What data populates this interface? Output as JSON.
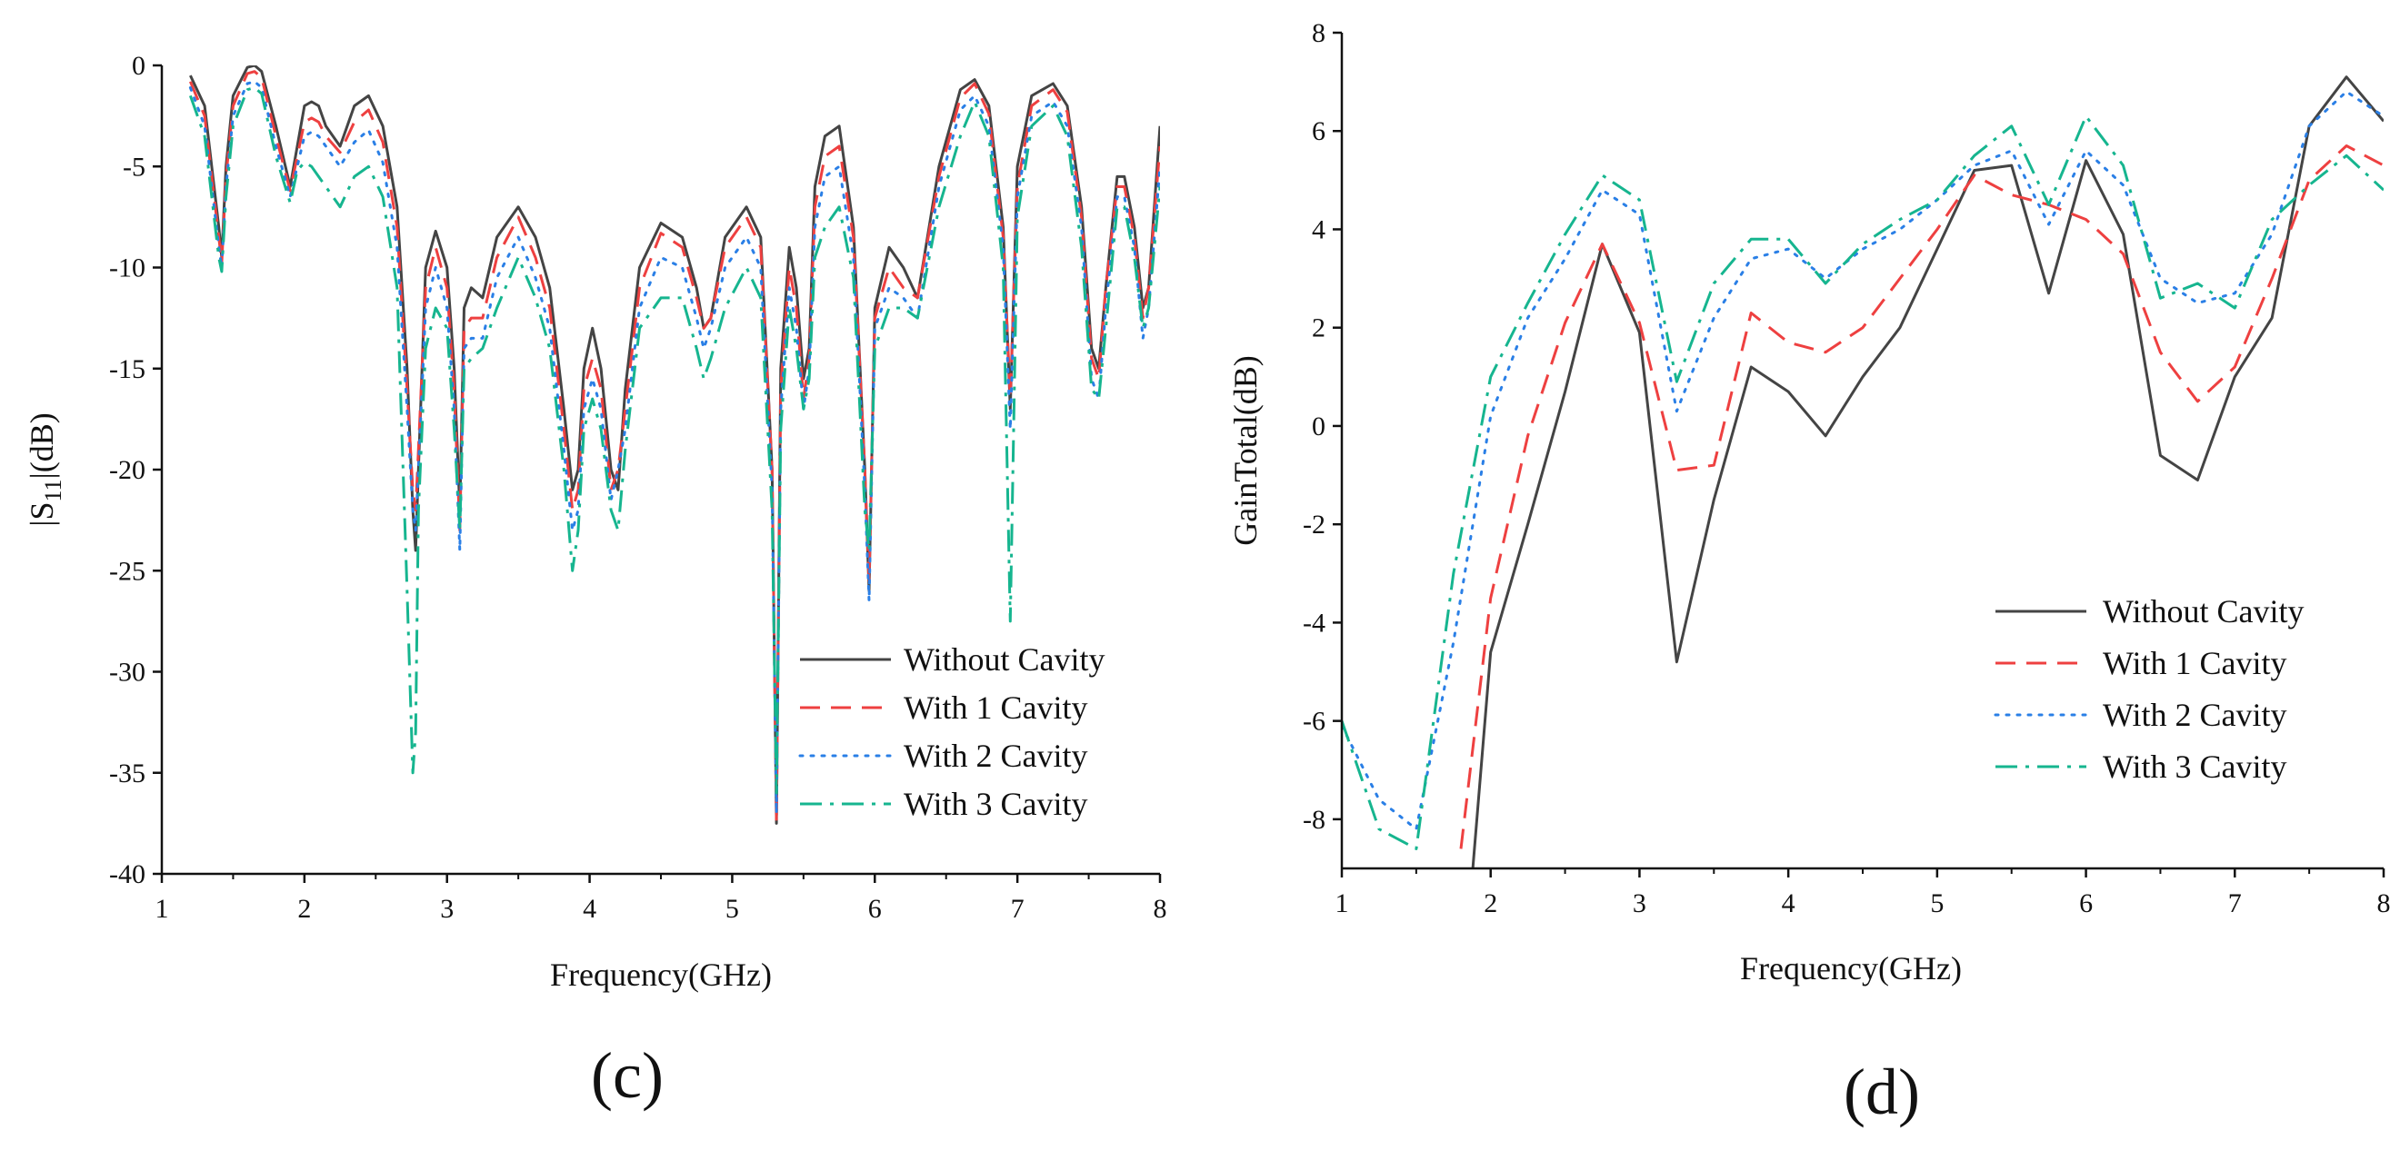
{
  "chart_data": [
    {
      "type": "line",
      "panel_label": "(c)",
      "title": "",
      "xlabel": "Frequency(GHz)",
      "ylabel_main": "|S",
      "ylabel_sub": "11",
      "ylabel_rest": "|(dB)",
      "xlim": [
        1,
        8
      ],
      "ylim": [
        -40,
        0
      ],
      "xticks": [
        "1",
        "2",
        "3",
        "4",
        "5",
        "6",
        "7",
        "8"
      ],
      "yticks": [
        "0",
        "-5",
        "-10",
        "-15",
        "-20",
        "-25",
        "-30",
        "-35",
        "-40"
      ],
      "grid": false,
      "legend_position": "bottom-right",
      "series": [
        {
          "name": "Without Cavity",
          "color": "#444444",
          "dash": "solid",
          "x": [
            1.2,
            1.3,
            1.4,
            1.42,
            1.45,
            1.5,
            1.6,
            1.65,
            1.7,
            1.8,
            1.9,
            1.95,
            2.0,
            2.05,
            2.1,
            2.15,
            2.25,
            2.35,
            2.45,
            2.55,
            2.65,
            2.72,
            2.76,
            2.78,
            2.8,
            2.85,
            2.92,
            3.0,
            3.05,
            3.09,
            3.12,
            3.17,
            3.25,
            3.35,
            3.5,
            3.62,
            3.72,
            3.82,
            3.88,
            3.92,
            3.96,
            4.02,
            4.08,
            4.15,
            4.2,
            4.25,
            4.35,
            4.5,
            4.65,
            4.75,
            4.8,
            4.85,
            4.95,
            5.1,
            5.2,
            5.28,
            5.31,
            5.34,
            5.4,
            5.45,
            5.5,
            5.54,
            5.58,
            5.65,
            5.75,
            5.85,
            5.93,
            5.96,
            6.0,
            6.1,
            6.2,
            6.3,
            6.45,
            6.6,
            6.7,
            6.8,
            6.9,
            6.95,
            7.0,
            7.1,
            7.25,
            7.35,
            7.45,
            7.52,
            7.57,
            7.62,
            7.7,
            7.75,
            7.82,
            7.88,
            7.92,
            8.0
          ],
          "y": [
            -0.5,
            -2,
            -8,
            -9.5,
            -5,
            -1.5,
            -0.1,
            0,
            -0.3,
            -3,
            -6,
            -4,
            -2,
            -1.8,
            -2,
            -3,
            -4,
            -2,
            -1.5,
            -3,
            -7,
            -15,
            -22,
            -24,
            -20,
            -10,
            -8.2,
            -10,
            -15,
            -22,
            -12,
            -11,
            -11.5,
            -8.5,
            -7,
            -8.5,
            -11,
            -17,
            -21,
            -20,
            -15,
            -13,
            -15,
            -20,
            -21,
            -16,
            -10,
            -7.8,
            -8.5,
            -11,
            -13,
            -12.5,
            -8.5,
            -7,
            -8.5,
            -20,
            -37.5,
            -15,
            -9,
            -11,
            -15.5,
            -14,
            -6,
            -3.5,
            -3,
            -8,
            -20,
            -26,
            -12,
            -9,
            -10,
            -11.5,
            -5,
            -1.2,
            -0.7,
            -2,
            -8,
            -17,
            -5,
            -1.5,
            -0.9,
            -2,
            -7,
            -14,
            -15,
            -11,
            -5.5,
            -5.5,
            -8,
            -12,
            -11,
            -3
          ]
        },
        {
          "name": "With 1 Cavity",
          "color": "#ee4040",
          "dash": "dash",
          "x": [
            1.2,
            1.3,
            1.4,
            1.42,
            1.45,
            1.5,
            1.6,
            1.65,
            1.7,
            1.8,
            1.9,
            1.95,
            2.0,
            2.05,
            2.1,
            2.15,
            2.25,
            2.35,
            2.45,
            2.55,
            2.65,
            2.72,
            2.76,
            2.78,
            2.8,
            2.85,
            2.92,
            3.0,
            3.05,
            3.09,
            3.12,
            3.17,
            3.25,
            3.35,
            3.5,
            3.62,
            3.72,
            3.82,
            3.88,
            3.92,
            3.96,
            4.02,
            4.08,
            4.15,
            4.2,
            4.25,
            4.35,
            4.5,
            4.65,
            4.75,
            4.8,
            4.85,
            4.95,
            5.1,
            5.2,
            5.28,
            5.31,
            5.34,
            5.4,
            5.45,
            5.5,
            5.54,
            5.58,
            5.65,
            5.75,
            5.85,
            5.93,
            5.96,
            6.0,
            6.1,
            6.2,
            6.3,
            6.45,
            6.6,
            6.7,
            6.8,
            6.9,
            6.95,
            7.0,
            7.1,
            7.25,
            7.35,
            7.45,
            7.52,
            7.57,
            7.62,
            7.7,
            7.75,
            7.82,
            7.88,
            7.92,
            8.0
          ],
          "y": [
            -0.8,
            -2.5,
            -8.5,
            -9.8,
            -5.5,
            -2,
            -0.4,
            -0.3,
            -0.6,
            -3.5,
            -6.2,
            -4.5,
            -2.8,
            -2.6,
            -2.8,
            -3.5,
            -4.3,
            -2.8,
            -2.2,
            -3.8,
            -8,
            -16,
            -21,
            -22,
            -19,
            -11,
            -9,
            -11,
            -16,
            -23,
            -13,
            -12.5,
            -12.5,
            -9.5,
            -7.5,
            -9.5,
            -12,
            -18,
            -22,
            -21,
            -16,
            -14.5,
            -16,
            -21,
            -20,
            -17,
            -11,
            -8.3,
            -9,
            -11.5,
            -13,
            -12.5,
            -9,
            -7.5,
            -9,
            -20,
            -37.5,
            -16,
            -10,
            -12,
            -16.5,
            -14.5,
            -7,
            -4.5,
            -4,
            -8.5,
            -20,
            -25.5,
            -12.5,
            -10,
            -11,
            -11.5,
            -5.5,
            -1.6,
            -0.9,
            -2.4,
            -8.5,
            -16.5,
            -6,
            -2,
            -1.2,
            -2.3,
            -7.5,
            -14.5,
            -15.5,
            -11,
            -6,
            -6,
            -8.5,
            -12.5,
            -11,
            -4
          ]
        },
        {
          "name": "With 2 Cavity",
          "color": "#2a7fe6",
          "dash": "dot",
          "x": [
            1.2,
            1.3,
            1.4,
            1.42,
            1.45,
            1.5,
            1.6,
            1.65,
            1.7,
            1.8,
            1.9,
            1.95,
            2.0,
            2.05,
            2.1,
            2.15,
            2.25,
            2.35,
            2.45,
            2.55,
            2.65,
            2.72,
            2.76,
            2.78,
            2.8,
            2.85,
            2.92,
            3.0,
            3.05,
            3.09,
            3.12,
            3.17,
            3.25,
            3.35,
            3.5,
            3.62,
            3.72,
            3.82,
            3.88,
            3.92,
            3.96,
            4.02,
            4.08,
            4.15,
            4.2,
            4.25,
            4.35,
            4.5,
            4.65,
            4.75,
            4.8,
            4.85,
            4.95,
            5.1,
            5.2,
            5.28,
            5.31,
            5.34,
            5.4,
            5.45,
            5.5,
            5.54,
            5.58,
            5.65,
            5.75,
            5.85,
            5.93,
            5.96,
            6.0,
            6.1,
            6.2,
            6.3,
            6.45,
            6.6,
            6.7,
            6.8,
            6.9,
            6.95,
            7.0,
            7.1,
            7.25,
            7.35,
            7.45,
            7.52,
            7.57,
            7.62,
            7.7,
            7.75,
            7.82,
            7.88,
            7.92,
            8.0
          ],
          "y": [
            -1.1,
            -3,
            -9,
            -10,
            -6,
            -2.5,
            -0.9,
            -0.8,
            -1.1,
            -4,
            -6.5,
            -5,
            -3.5,
            -3.3,
            -3.5,
            -4,
            -5,
            -3.8,
            -3.2,
            -4.8,
            -9,
            -17,
            -22,
            -23,
            -20,
            -12,
            -10,
            -12,
            -17,
            -24,
            -14,
            -13.5,
            -13.5,
            -10.5,
            -8.5,
            -10.5,
            -13,
            -19,
            -23,
            -22,
            -17,
            -15.5,
            -17,
            -21.5,
            -20,
            -18,
            -12,
            -9.5,
            -10,
            -12.5,
            -14,
            -13,
            -10,
            -8.5,
            -10,
            -21,
            -37,
            -17,
            -11,
            -13,
            -17,
            -15,
            -8,
            -5.5,
            -5,
            -9.5,
            -21,
            -26.5,
            -13,
            -11,
            -11.5,
            -12.5,
            -6,
            -2.2,
            -1.5,
            -3,
            -9,
            -18,
            -6.5,
            -2.5,
            -1.8,
            -3,
            -8,
            -15.5,
            -16.5,
            -12,
            -6.5,
            -6.5,
            -9,
            -13.5,
            -12,
            -5
          ]
        },
        {
          "name": "With 3 Cavity",
          "color": "#16b58f",
          "dash": "dashdot",
          "x": [
            1.2,
            1.3,
            1.4,
            1.42,
            1.45,
            1.5,
            1.6,
            1.65,
            1.7,
            1.8,
            1.9,
            1.95,
            2.0,
            2.05,
            2.1,
            2.15,
            2.25,
            2.35,
            2.45,
            2.55,
            2.65,
            2.72,
            2.76,
            2.78,
            2.8,
            2.85,
            2.92,
            3.0,
            3.05,
            3.09,
            3.12,
            3.17,
            3.25,
            3.35,
            3.5,
            3.62,
            3.72,
            3.82,
            3.88,
            3.92,
            3.96,
            4.02,
            4.08,
            4.15,
            4.2,
            4.25,
            4.35,
            4.5,
            4.65,
            4.75,
            4.8,
            4.85,
            4.95,
            5.1,
            5.2,
            5.28,
            5.31,
            5.34,
            5.4,
            5.45,
            5.5,
            5.54,
            5.58,
            5.65,
            5.75,
            5.85,
            5.93,
            5.96,
            6.0,
            6.1,
            6.2,
            6.3,
            6.45,
            6.6,
            6.7,
            6.8,
            6.9,
            6.95,
            7.0,
            7.1,
            7.25,
            7.35,
            7.45,
            7.52,
            7.57,
            7.62,
            7.7,
            7.75,
            7.82,
            7.88,
            7.92,
            8.0
          ],
          "y": [
            -1.5,
            -3.5,
            -9.5,
            -10.2,
            -6.5,
            -3,
            -1.2,
            -1.1,
            -1.4,
            -4.5,
            -6.8,
            -5.2,
            -4.8,
            -5,
            -5.5,
            -6,
            -7,
            -5.5,
            -5,
            -6.5,
            -11,
            -26,
            -35,
            -33,
            -22,
            -14,
            -12,
            -13,
            -18,
            -23,
            -15,
            -14.5,
            -14,
            -12,
            -9.5,
            -11.5,
            -14,
            -20,
            -25,
            -23,
            -18,
            -16.5,
            -18,
            -22,
            -23,
            -19,
            -13,
            -11.5,
            -11.5,
            -14,
            -15.5,
            -14.5,
            -12,
            -10,
            -11.5,
            -22,
            -36,
            -18,
            -12,
            -14,
            -17,
            -15.5,
            -9.5,
            -8,
            -7,
            -10.5,
            -22,
            -24,
            -14,
            -12,
            -12,
            -12.5,
            -7,
            -3.5,
            -1.8,
            -3.5,
            -10,
            -27.5,
            -7.5,
            -3,
            -2,
            -3.5,
            -9,
            -16,
            -16.5,
            -13,
            -7,
            -7,
            -9.5,
            -13,
            -12,
            -6
          ]
        }
      ]
    },
    {
      "type": "line",
      "panel_label": "(d)",
      "title": "",
      "xlabel": "Frequency(GHz)",
      "ylabel": "GainTotal(dB)",
      "xlim": [
        1,
        8
      ],
      "ylim": [
        -9,
        8
      ],
      "xticks": [
        "1",
        "2",
        "3",
        "4",
        "5",
        "6",
        "7",
        "8"
      ],
      "yticks": [
        "8",
        "6",
        "4",
        "2",
        "0",
        "-2",
        "-4",
        "-6",
        "-8"
      ],
      "grid": false,
      "legend_position": "bottom-right",
      "series": [
        {
          "name": "Without Cavity",
          "color": "#444444",
          "dash": "solid",
          "x": [
            1.88,
            2.0,
            2.25,
            2.5,
            2.75,
            3.0,
            3.25,
            3.5,
            3.75,
            4.0,
            4.25,
            4.5,
            4.75,
            5.0,
            5.25,
            5.5,
            5.75,
            6.0,
            6.25,
            6.5,
            6.75,
            7.0,
            7.25,
            7.5,
            7.75,
            8.0
          ],
          "y": [
            -9,
            -4.6,
            -2,
            0.7,
            3.7,
            1.9,
            -4.8,
            -1.5,
            1.2,
            0.7,
            -0.2,
            1.0,
            2.0,
            3.6,
            5.2,
            5.3,
            2.7,
            5.4,
            3.9,
            -0.6,
            -1.1,
            1.0,
            2.2,
            6.1,
            7.1,
            6.2
          ]
        },
        {
          "name": "With 1 Cavity",
          "color": "#ee4040",
          "dash": "dash",
          "x": [
            1.8,
            2.0,
            2.25,
            2.5,
            2.75,
            3.0,
            3.25,
            3.5,
            3.75,
            4.0,
            4.25,
            4.5,
            4.75,
            5.0,
            5.25,
            5.5,
            5.75,
            6.0,
            6.25,
            6.5,
            6.75,
            7.0,
            7.25,
            7.5,
            7.75,
            8.0
          ],
          "y": [
            -8.6,
            -3.5,
            -0.2,
            2.1,
            3.7,
            2.1,
            -0.9,
            -0.8,
            2.3,
            1.7,
            1.5,
            2.0,
            3.0,
            4.0,
            5.1,
            4.7,
            4.5,
            4.2,
            3.5,
            1.5,
            0.5,
            1.2,
            3.0,
            5.0,
            5.7,
            5.3
          ]
        },
        {
          "name": "With 2 Cavity",
          "color": "#2a7fe6",
          "dash": "dot",
          "x": [
            1.0,
            1.25,
            1.5,
            1.75,
            2.0,
            2.25,
            2.5,
            2.75,
            3.0,
            3.25,
            3.5,
            3.75,
            4.0,
            4.25,
            4.5,
            4.75,
            5.0,
            5.25,
            5.5,
            5.75,
            6.0,
            6.25,
            6.5,
            6.75,
            7.0,
            7.25,
            7.5,
            7.75,
            8.0
          ],
          "y": [
            -6.1,
            -7.6,
            -8.2,
            -4.4,
            0.2,
            2.2,
            3.4,
            4.8,
            4.3,
            0.3,
            2.2,
            3.4,
            3.6,
            3.0,
            3.6,
            4.0,
            4.6,
            5.3,
            5.6,
            4.1,
            5.6,
            4.9,
            3.0,
            2.5,
            2.7,
            3.9,
            6.1,
            6.8,
            6.3
          ]
        },
        {
          "name": "With 3 Cavity",
          "color": "#16b58f",
          "dash": "dashdot",
          "x": [
            1.0,
            1.25,
            1.5,
            1.75,
            2.0,
            2.25,
            2.5,
            2.75,
            3.0,
            3.25,
            3.5,
            3.75,
            4.0,
            4.25,
            4.5,
            4.75,
            5.0,
            5.25,
            5.5,
            5.75,
            6.0,
            6.25,
            6.5,
            6.75,
            7.0,
            7.25,
            7.5,
            7.75,
            8.0
          ],
          "y": [
            -6.0,
            -8.2,
            -8.6,
            -3.0,
            1.0,
            2.5,
            3.9,
            5.1,
            4.6,
            0.9,
            2.9,
            3.8,
            3.8,
            2.9,
            3.7,
            4.2,
            4.6,
            5.5,
            6.1,
            4.5,
            6.3,
            5.3,
            2.6,
            2.9,
            2.4,
            4.2,
            4.9,
            5.5,
            4.8
          ]
        }
      ]
    }
  ]
}
